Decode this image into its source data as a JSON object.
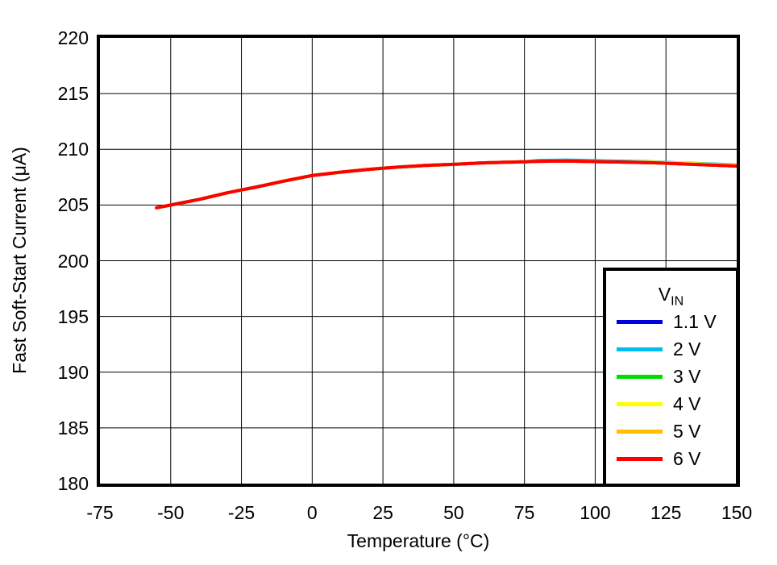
{
  "chart_data": {
    "type": "line",
    "title": "",
    "xlabel": "Temperature (°C)",
    "ylabel": "Fast Soft-Start Current (μA)",
    "xlim": [
      -75,
      150
    ],
    "ylim": [
      180,
      220
    ],
    "xticks": [
      -75,
      -50,
      -25,
      0,
      25,
      50,
      75,
      100,
      125,
      150
    ],
    "yticks": [
      180,
      185,
      190,
      195,
      200,
      205,
      210,
      215,
      220
    ],
    "grid": true,
    "grid_color": "#000000",
    "line_width": 4,
    "legend_position": "lower right",
    "x": [
      -55,
      -50,
      -40,
      -30,
      -25,
      -20,
      -10,
      0,
      10,
      20,
      25,
      30,
      40,
      50,
      60,
      70,
      75,
      80,
      90,
      100,
      110,
      120,
      125,
      130,
      140,
      150
    ],
    "series": [
      {
        "name": "1.1 V",
        "color": "#0000DC",
        "values": [
          204.75,
          205.0,
          205.5,
          206.1,
          206.35,
          206.6,
          207.15,
          207.65,
          207.95,
          208.2,
          208.3,
          208.4,
          208.55,
          208.65,
          208.78,
          208.85,
          208.88,
          208.92,
          208.95,
          208.9,
          208.85,
          208.8,
          208.75,
          208.7,
          208.6,
          208.5
        ]
      },
      {
        "name": "2 V",
        "color": "#00BEF0",
        "values": [
          204.75,
          205.0,
          205.5,
          206.1,
          206.35,
          206.6,
          207.15,
          207.65,
          207.95,
          208.2,
          208.3,
          208.4,
          208.55,
          208.65,
          208.78,
          208.85,
          208.88,
          209.0,
          209.03,
          208.98,
          208.93,
          208.88,
          208.83,
          208.78,
          208.7,
          208.6
        ]
      },
      {
        "name": "3 V",
        "color": "#00DC00",
        "values": [
          204.75,
          205.0,
          205.5,
          206.1,
          206.35,
          206.6,
          207.15,
          207.65,
          207.95,
          208.2,
          208.3,
          208.4,
          208.55,
          208.65,
          208.78,
          208.85,
          208.88,
          208.92,
          208.95,
          208.9,
          208.85,
          208.8,
          208.75,
          208.7,
          208.6,
          208.5
        ]
      },
      {
        "name": "4 V",
        "color": "#FFFF00",
        "values": [
          204.75,
          205.0,
          205.5,
          206.1,
          206.35,
          206.6,
          207.15,
          207.65,
          207.95,
          208.2,
          208.3,
          208.4,
          208.55,
          208.65,
          208.78,
          208.85,
          208.88,
          208.92,
          208.95,
          208.9,
          208.85,
          208.85,
          208.8,
          208.76,
          208.66,
          208.56
        ]
      },
      {
        "name": "5 V",
        "color": "#FFBE00",
        "values": [
          204.75,
          205.0,
          205.5,
          206.1,
          206.35,
          206.6,
          207.15,
          207.65,
          207.95,
          208.2,
          208.3,
          208.4,
          208.55,
          208.65,
          208.78,
          208.85,
          208.88,
          208.92,
          208.95,
          208.9,
          208.85,
          208.8,
          208.75,
          208.7,
          208.6,
          208.5
        ]
      },
      {
        "name": "6 V",
        "color": "#FF0000",
        "values": [
          204.75,
          205.0,
          205.5,
          206.1,
          206.35,
          206.6,
          207.15,
          207.65,
          207.95,
          208.2,
          208.3,
          208.4,
          208.55,
          208.65,
          208.78,
          208.85,
          208.88,
          208.92,
          208.95,
          208.9,
          208.85,
          208.8,
          208.75,
          208.7,
          208.6,
          208.5
        ]
      }
    ]
  },
  "legend": {
    "title_main": "V",
    "title_sub": "IN"
  }
}
